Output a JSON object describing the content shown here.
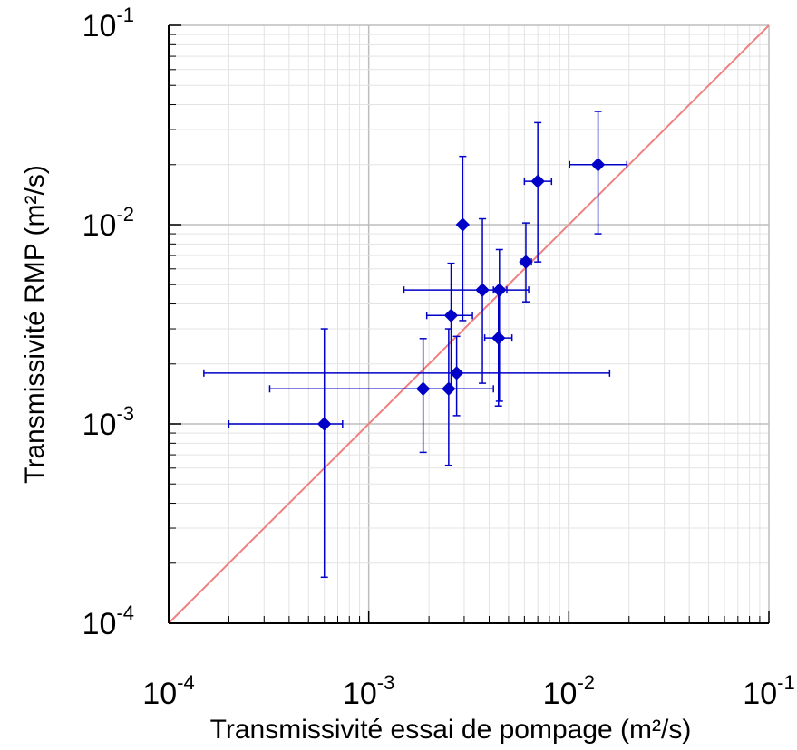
{
  "chart_data": {
    "type": "scatter",
    "title": "",
    "xlabel": "Transmissivité essai de pompage (m²/s)",
    "ylabel": "Transmissivité RMP (m²/s)",
    "xscale": "log",
    "yscale": "log",
    "xlim": [
      0.0001,
      0.1
    ],
    "ylim": [
      0.0001,
      0.1
    ],
    "grid": true,
    "x_ticks": [
      {
        "base": "10",
        "exp": "-4"
      },
      {
        "base": "10",
        "exp": "-3"
      },
      {
        "base": "10",
        "exp": "-2"
      },
      {
        "base": "10",
        "exp": "-1"
      }
    ],
    "y_ticks": [
      {
        "base": "10",
        "exp": "-4"
      },
      {
        "base": "10",
        "exp": "-3"
      },
      {
        "base": "10",
        "exp": "-2"
      },
      {
        "base": "10",
        "exp": "-1"
      }
    ],
    "reference_line": {
      "type": "1:1",
      "color": "#f08080"
    },
    "marker_color": "#0000c8",
    "points": [
      {
        "x": 0.0006,
        "y": 0.001,
        "x_err": [
          0.0002,
          0.00074
        ],
        "y_err": [
          0.00017,
          0.003
        ]
      },
      {
        "x": 0.00187,
        "y": 0.0015,
        "x_err": [
          0.00032,
          0.0042
        ],
        "y_err": [
          0.00072,
          0.00268
        ]
      },
      {
        "x": 0.00251,
        "y": 0.0015,
        "x_err": null,
        "y_err": [
          0.00062,
          0.003
        ]
      },
      {
        "x": 0.00275,
        "y": 0.0018,
        "x_err": [
          0.00015,
          0.016
        ],
        "y_err": [
          0.0011,
          0.00275
        ]
      },
      {
        "x": 0.00258,
        "y": 0.0035,
        "x_err": [
          0.00195,
          0.0033
        ],
        "y_err": [
          0.0015,
          0.0064
        ]
      },
      {
        "x": 0.00295,
        "y": 0.01,
        "x_err": null,
        "y_err": [
          0.0033,
          0.022
        ]
      },
      {
        "x": 0.0037,
        "y": 0.0047,
        "x_err": [
          0.0015,
          0.0063
        ],
        "y_err": [
          0.0016,
          0.0107
        ]
      },
      {
        "x": 0.0045,
        "y": 0.0047,
        "x_err": [
          0.0042,
          0.0049
        ],
        "y_err": [
          0.0013,
          0.0075
        ]
      },
      {
        "x": 0.00445,
        "y": 0.0027,
        "x_err": [
          0.0038,
          0.0052
        ],
        "y_err": [
          0.00123,
          0.0046
        ]
      },
      {
        "x": 0.0061,
        "y": 0.0065,
        "x_err": [
          0.0058,
          0.0065
        ],
        "y_err": [
          0.0041,
          0.0102
        ]
      },
      {
        "x": 0.007,
        "y": 0.0165,
        "x_err": [
          0.006,
          0.0082
        ],
        "y_err": [
          0.0065,
          0.0325
        ]
      },
      {
        "x": 0.014,
        "y": 0.02,
        "x_err": [
          0.0101,
          0.0195
        ],
        "y_err": [
          0.009,
          0.037
        ]
      }
    ]
  }
}
